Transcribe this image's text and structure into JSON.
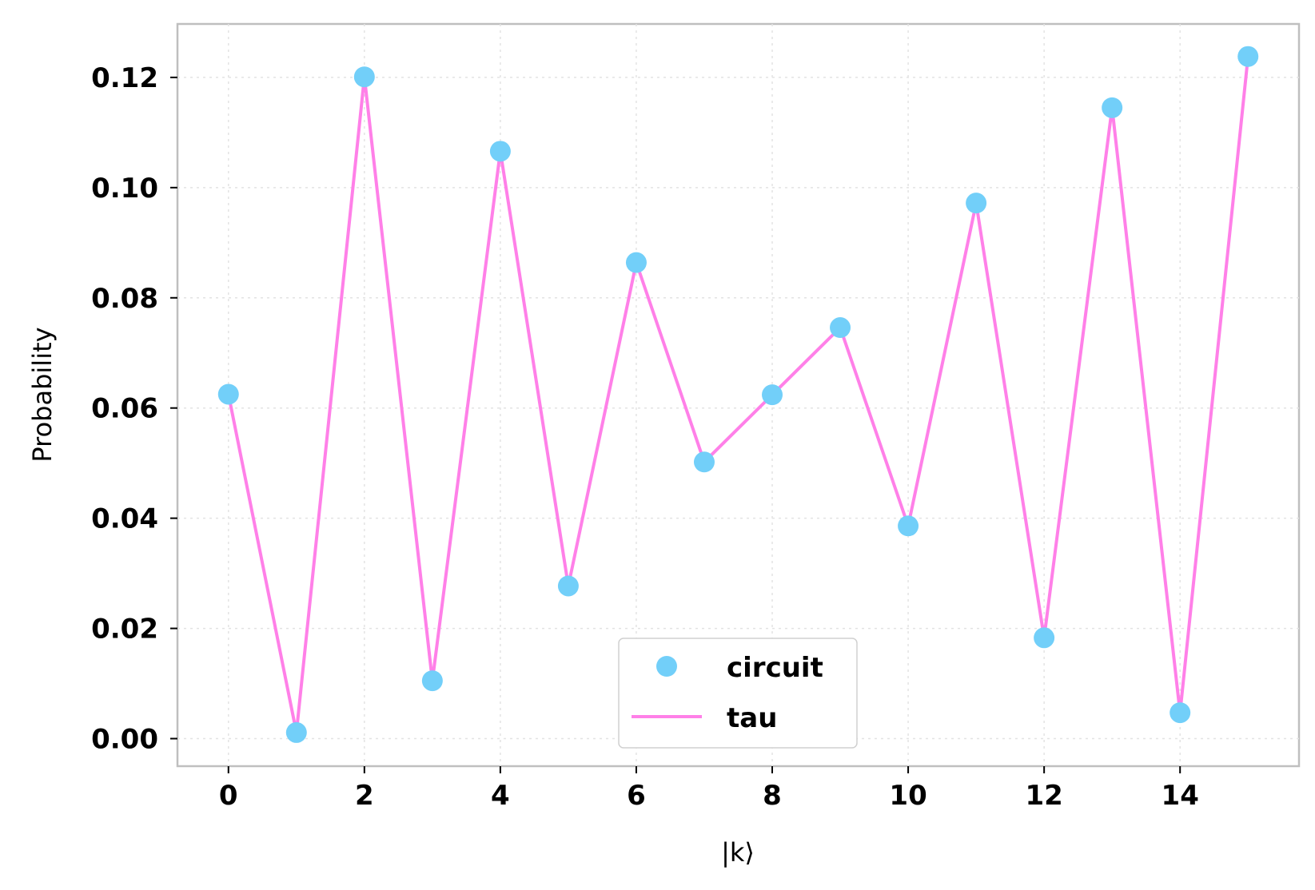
{
  "chart_data": {
    "type": "line",
    "xlabel": "|k⟩",
    "ylabel": "Probability",
    "xlim": [
      -0.75,
      15.75
    ],
    "ylim": [
      -0.005,
      0.1297
    ],
    "xticks": [
      0,
      2,
      4,
      6,
      8,
      10,
      12,
      14
    ],
    "xtick_labels": [
      "0",
      "2",
      "4",
      "6",
      "8",
      "10",
      "12",
      "14"
    ],
    "yticks": [
      0.0,
      0.02,
      0.04,
      0.06,
      0.08,
      0.1,
      0.12
    ],
    "ytick_labels": [
      "0.00",
      "0.02",
      "0.04",
      "0.06",
      "0.08",
      "0.10",
      "0.12"
    ],
    "grid": true,
    "legend_position": "bottom-center",
    "x": [
      0,
      1,
      2,
      3,
      4,
      5,
      6,
      7,
      8,
      9,
      10,
      11,
      12,
      13,
      14,
      15
    ],
    "series": [
      {
        "name": "circuit",
        "kind": "scatter",
        "color": "#72cff9",
        "values": [
          0.0625,
          0.0011,
          0.1201,
          0.0105,
          0.1066,
          0.0277,
          0.0864,
          0.0502,
          0.0624,
          0.0746,
          0.0386,
          0.0972,
          0.0183,
          0.1145,
          0.0047,
          0.1238
        ]
      },
      {
        "name": "tau",
        "kind": "line",
        "color": "#ff80e8",
        "values": [
          0.0625,
          0.0011,
          0.1201,
          0.0105,
          0.1066,
          0.0277,
          0.0864,
          0.0502,
          0.0624,
          0.0746,
          0.0386,
          0.0972,
          0.0183,
          0.1145,
          0.0047,
          0.1238
        ]
      }
    ]
  }
}
